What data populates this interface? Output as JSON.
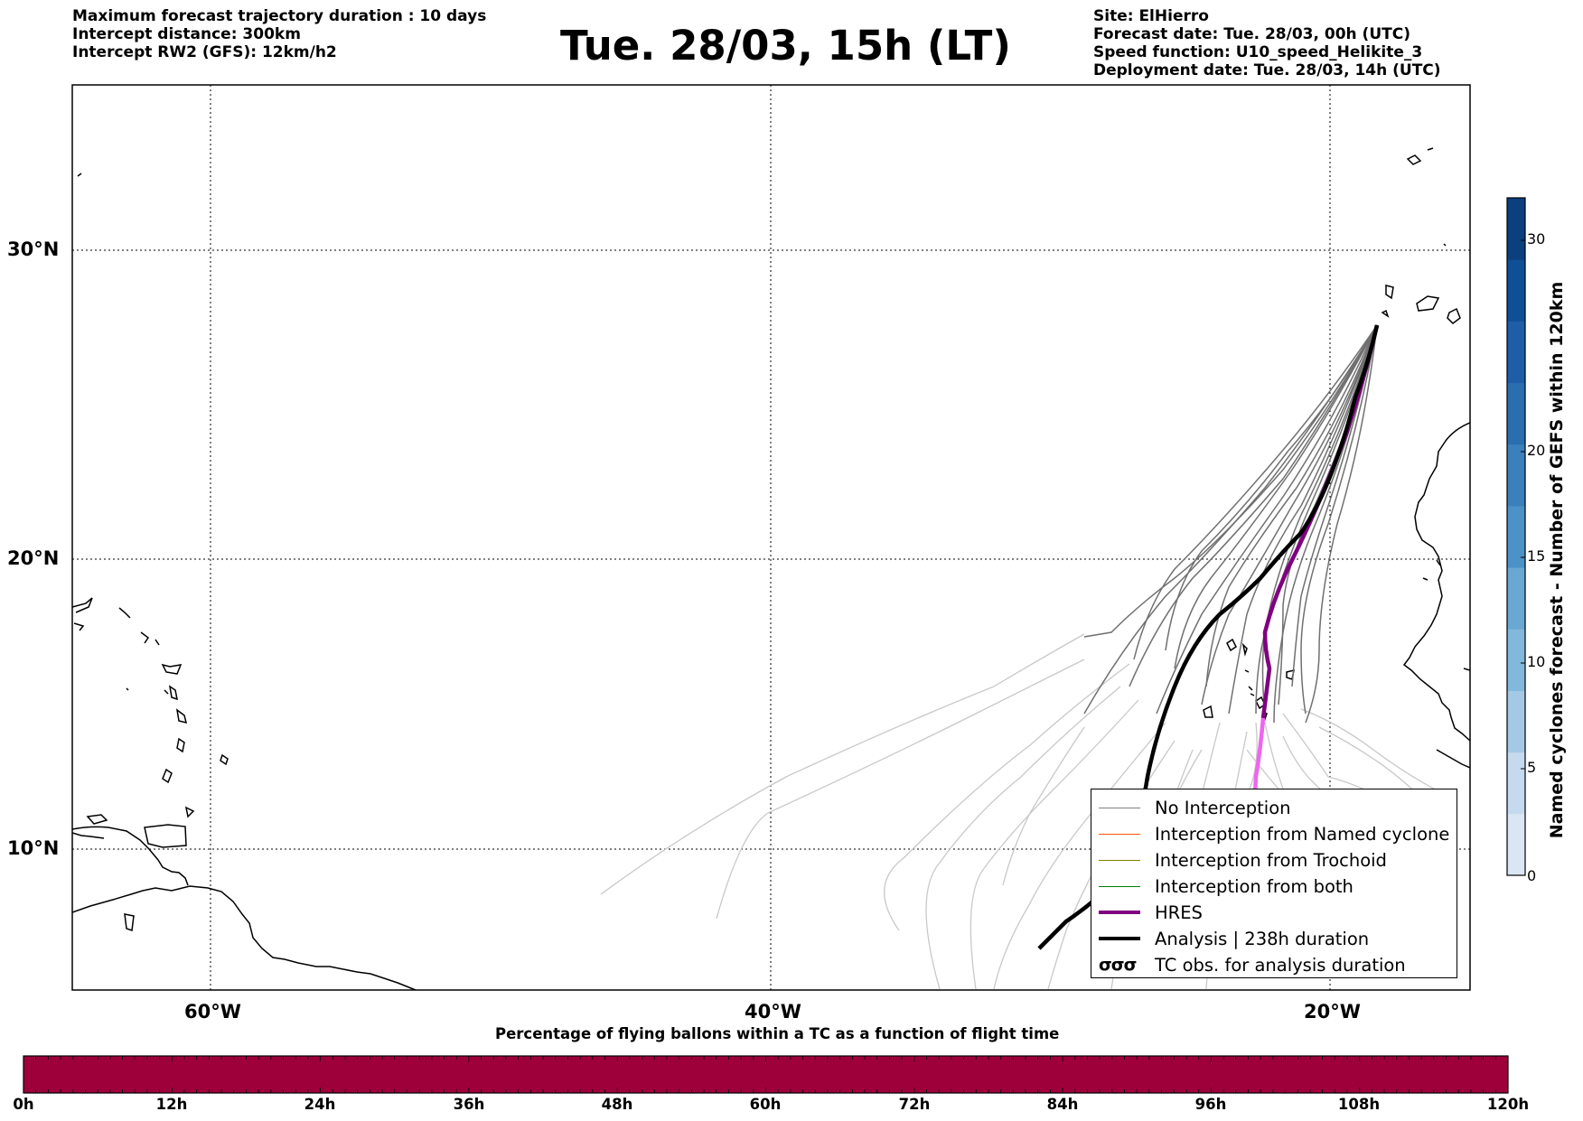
{
  "header": {
    "left_lines": [
      "Maximum forecast trajectory duration : 10 days",
      "Intercept distance: 300km",
      "Intercept RW2 (GFS):  12km/h2"
    ],
    "title": "Tue. 28/03, 15h (LT)",
    "right_lines": [
      "Site: ElHierro",
      "Forecast date: Tue. 28/03, 00h (UTC)",
      "Speed function: U10_speed_Helikite_3",
      "Deployment date: Tue. 28/03, 14h (UTC)"
    ]
  },
  "map": {
    "lat_labels": [
      "30°N",
      "20°N",
      "10°N"
    ],
    "lon_labels": [
      "60°W",
      "40°W",
      "20°W"
    ]
  },
  "legend": {
    "items": [
      {
        "label": "No Interception",
        "color": "#808080"
      },
      {
        "label": "Interception from Named cyclone",
        "color": "#ff5500"
      },
      {
        "label": "Interception from Trochoid",
        "color": "#808000"
      },
      {
        "label": "Interception from both",
        "color": "#008000"
      },
      {
        "label": "HRES",
        "color": "#800080"
      },
      {
        "label": "Analysis | 238h duration",
        "color": "#000000"
      },
      {
        "label": "TC obs. for analysis duration",
        "color": "#000000",
        "icon": "cyclone-symbol-icon"
      }
    ],
    "tc_symbols": "σσσ"
  },
  "colorbar_right": {
    "title": "Named cyclones forecast - Number of GEFS within 120km",
    "ticks": [
      "30",
      "20",
      "15",
      "10",
      "5",
      "0"
    ],
    "colors": [
      "#dbe6f4",
      "#c6daef",
      "#a4c9e4",
      "#82b8dc",
      "#6aa7d3",
      "#4c92c6",
      "#3b80bb",
      "#2a6eb0",
      "#1d5ea6",
      "#0f4f96",
      "#0b3f7e"
    ]
  },
  "colorbar_bottom": {
    "title": "Percentage of flying ballons within a TC as a function of flight time",
    "ticks": [
      "0h",
      "12h",
      "24h",
      "36h",
      "48h",
      "60h",
      "72h",
      "84h",
      "96h",
      "108h",
      "120h"
    ],
    "color": "#9e003a"
  }
}
